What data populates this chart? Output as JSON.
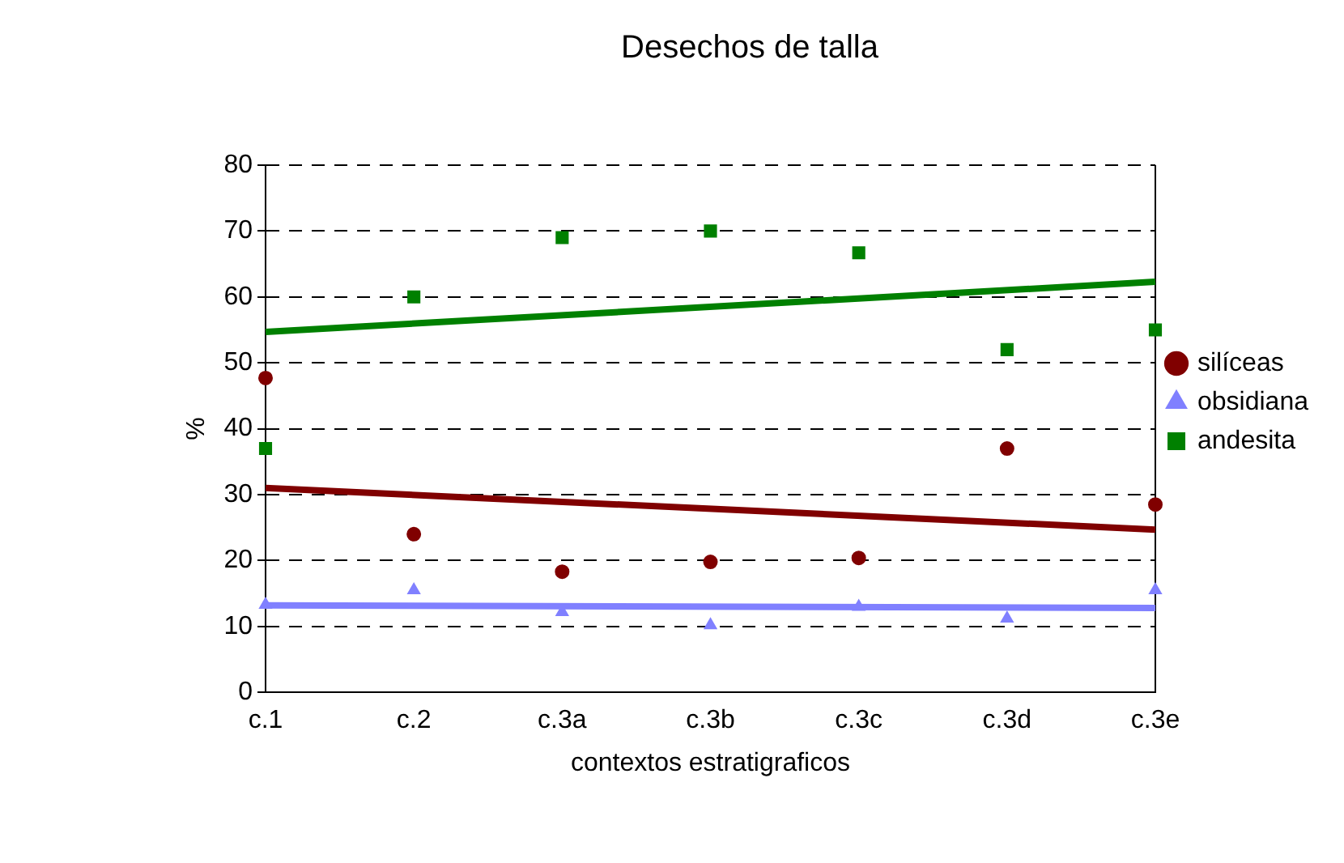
{
  "chart_data": {
    "type": "scatter",
    "title": "Desechos de talla",
    "xlabel": "contextos estratigraficos",
    "ylabel": "%",
    "categories": [
      "c.1",
      "c.2",
      "c.3a",
      "c.3b",
      "c.3c",
      "c.3d",
      "c.3e"
    ],
    "series": [
      {
        "name": "silíceas",
        "color": "#800000",
        "marker": "circle",
        "values": [
          47.7,
          24,
          18.3,
          19.8,
          20.4,
          37,
          28.5
        ]
      },
      {
        "name": "obsidiana",
        "color": "#8080ff",
        "marker": "triangle",
        "values": [
          13.3,
          15.5,
          12.2,
          10.2,
          13,
          11.2,
          15.5
        ]
      },
      {
        "name": "andesita",
        "color": "#008000",
        "marker": "square",
        "values": [
          37,
          60,
          69,
          70,
          66.7,
          52,
          55
        ]
      },
      {
        "type": "line",
        "color": "#800000",
        "marker": "none",
        "values": [
          31,
          null,
          null,
          null,
          null,
          null,
          24.7
        ]
      },
      {
        "type": "line",
        "color": "#8080ff",
        "marker": "none",
        "values": [
          13.2,
          null,
          null,
          null,
          null,
          null,
          12.8
        ]
      },
      {
        "type": "line",
        "color": "#008000",
        "marker": "none",
        "values": [
          54.7,
          null,
          null,
          null,
          null,
          null,
          62.3
        ]
      }
    ],
    "ylim": [
      0,
      80
    ],
    "yticks": [
      0,
      10,
      20,
      30,
      40,
      50,
      60,
      70,
      80
    ],
    "grid": "y",
    "legend": "right"
  }
}
